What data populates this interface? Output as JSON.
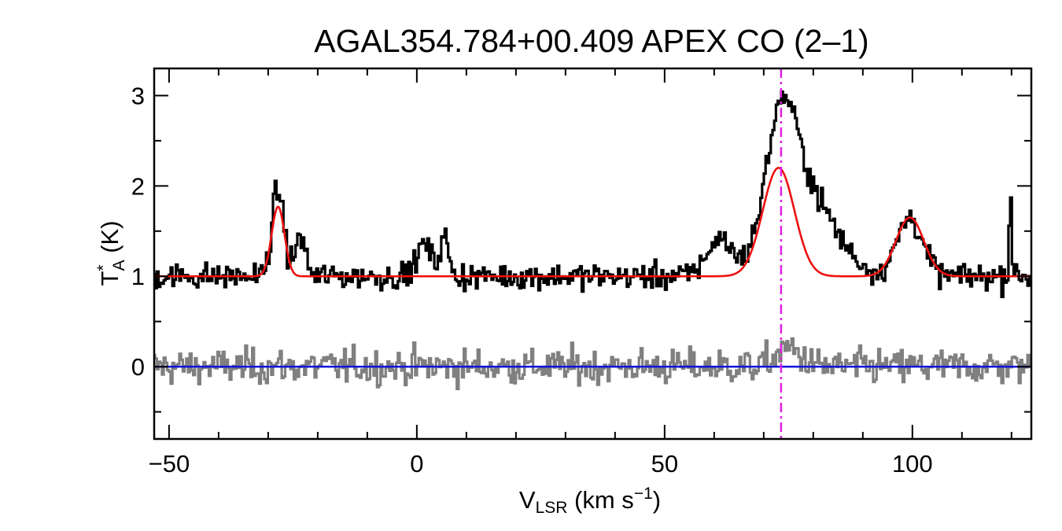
{
  "chart_data": {
    "type": "line",
    "title": "AGAL354.784+00.409  APEX CO (2–1)",
    "xlabel": {
      "main": "V",
      "sub": "LSR",
      "unit_a": " (km s",
      "sup": "−1",
      "unit_b": ")"
    },
    "ylabel": {
      "main": "T",
      "sup": "*",
      "sub": "A",
      "unit": " (K)"
    },
    "xlim": [
      -53,
      124
    ],
    "ylim": [
      -0.8,
      3.3
    ],
    "xticks": [
      -50,
      0,
      50,
      100
    ],
    "xtick_labels": [
      "−50",
      "0",
      "50",
      "100"
    ],
    "yticks": [
      0,
      1,
      2,
      3
    ],
    "ytick_labels": [
      "0",
      "1",
      "2",
      "3"
    ],
    "grid": false,
    "legend": "none",
    "reference_line": {
      "x": 73.5,
      "color": "#e020e0",
      "style": "dash-dot"
    },
    "colors": {
      "spectrum": "#000000",
      "fit": "#ee1111",
      "residual": "#808080",
      "zero": "#1010dd"
    },
    "series": [
      {
        "role": "spectrum",
        "baseline": 1.0,
        "noise_rms": 0.09,
        "features": [
          {
            "x": -28,
            "y": 0.95,
            "width": 1.2
          },
          {
            "x": -23.5,
            "y": 0.45,
            "width": 1.0
          },
          {
            "x": 1.5,
            "y": 0.35,
            "width": 1.5
          },
          {
            "x": 5.5,
            "y": 0.45,
            "width": 0.8
          },
          {
            "x": 61,
            "y": 0.4,
            "width": 2.5
          },
          {
            "x": 73.5,
            "y": 1.25,
            "width": 3.0
          },
          {
            "x": 78,
            "y": 0.95,
            "width": 6.0
          },
          {
            "x": 99.5,
            "y": 0.65,
            "width": 2.5
          },
          {
            "x": 119.8,
            "y": 1.0,
            "width": 0.25
          }
        ]
      },
      {
        "role": "fit",
        "baseline": 1.0,
        "components": [
          {
            "center": -28.0,
            "amplitude": 0.77,
            "sigma": 1.3
          },
          {
            "center": 73.0,
            "amplitude": 1.2,
            "sigma": 3.2
          },
          {
            "center": 99.5,
            "amplitude": 0.65,
            "sigma": 2.8
          }
        ]
      },
      {
        "role": "residual",
        "baseline": 0.0,
        "noise_rms": 0.12,
        "features": [
          {
            "x": 75,
            "y": 0.2,
            "width": 2.5
          }
        ]
      },
      {
        "role": "zero",
        "value": 0.0
      }
    ]
  }
}
